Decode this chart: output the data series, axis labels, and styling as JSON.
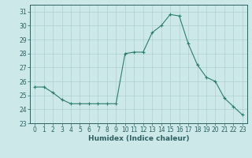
{
  "x": [
    0,
    1,
    2,
    3,
    4,
    5,
    6,
    7,
    8,
    9,
    10,
    11,
    12,
    13,
    14,
    15,
    16,
    17,
    18,
    19,
    20,
    21,
    22,
    23
  ],
  "y": [
    25.6,
    25.6,
    25.2,
    24.7,
    24.4,
    24.4,
    24.4,
    24.4,
    24.4,
    24.4,
    28.0,
    28.1,
    28.1,
    29.5,
    30.0,
    30.8,
    30.7,
    28.7,
    27.2,
    26.3,
    26.0,
    24.8,
    24.2,
    23.6
  ],
  "line_color": "#2d7d6e",
  "marker": "+",
  "marker_size": 3,
  "bg_color": "#cce8e8",
  "grid_color": "#aed0d0",
  "xlabel": "Humidex (Indice chaleur)",
  "ylabel": "",
  "ylim": [
    23,
    31.5
  ],
  "yticks": [
    23,
    24,
    25,
    26,
    27,
    28,
    29,
    30,
    31
  ],
  "xticks": [
    0,
    1,
    2,
    3,
    4,
    5,
    6,
    7,
    8,
    9,
    10,
    11,
    12,
    13,
    14,
    15,
    16,
    17,
    18,
    19,
    20,
    21,
    22,
    23
  ],
  "xlim": [
    -0.5,
    23.5
  ],
  "tick_color": "#2d6060",
  "text_color": "#2d6060",
  "label_fontsize": 6.5,
  "tick_fontsize": 5.5
}
